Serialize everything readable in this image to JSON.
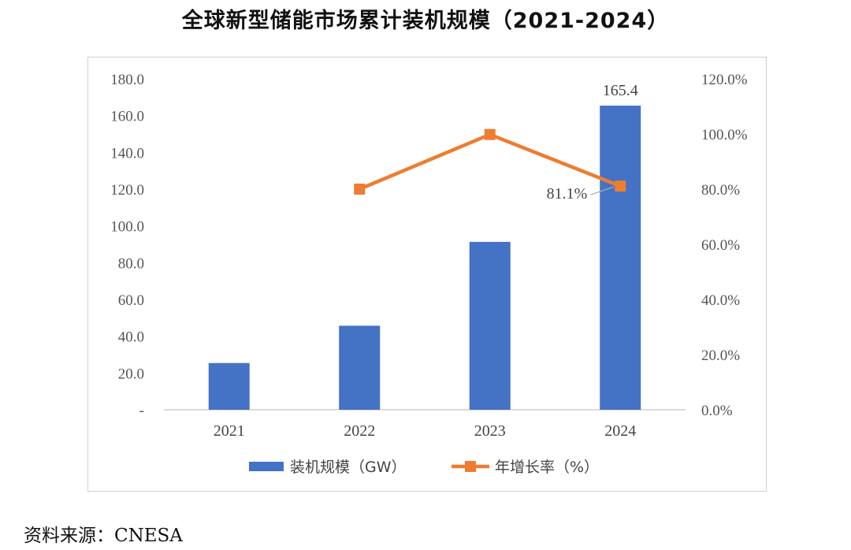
{
  "title": "全球新型储能市场累计装机规模（2021-2024）",
  "source": "资料来源：CNESA",
  "chart_data": {
    "type": "bar+line",
    "categories": [
      "2021",
      "2022",
      "2023",
      "2024"
    ],
    "series": [
      {
        "name": "装机规模（GW）",
        "type": "bar",
        "axis": "left",
        "color": "#4472C4",
        "values": [
          25.4,
          45.7,
          91.3,
          165.4
        ]
      },
      {
        "name": "年增长率（%）",
        "type": "line",
        "axis": "right",
        "color": "#ED7D31",
        "values": [
          null,
          80.0,
          99.8,
          81.1
        ]
      }
    ],
    "y_left": {
      "min": 0,
      "max": 180,
      "ticks": [
        "-",
        "20.0",
        "40.0",
        "60.0",
        "80.0",
        "100.0",
        "120.0",
        "140.0",
        "160.0",
        "180.0"
      ]
    },
    "y_right": {
      "min": 0,
      "max": 120,
      "ticks": [
        "0.0%",
        "20.0%",
        "40.0%",
        "60.0%",
        "80.0%",
        "100.0%",
        "120.0%"
      ]
    },
    "data_labels": [
      {
        "series": 0,
        "index": 3,
        "text": "165.4"
      },
      {
        "series": 1,
        "index": 3,
        "text": "81.1%"
      }
    ],
    "grid": false,
    "legend": "bottom"
  }
}
